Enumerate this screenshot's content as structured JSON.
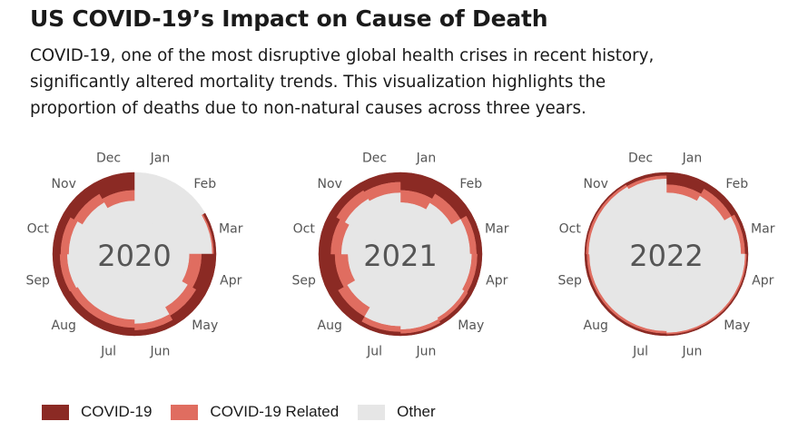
{
  "header": {
    "title": "US COVID-19’s Impact on Cause of Death",
    "subtitle_lines": [
      "COVID-19, one of the most disruptive global health crises in recent history,",
      "significantly altered mortality trends. This visualization highlights the",
      "proportion of deaths due to non-natural causes across three years."
    ]
  },
  "colors": {
    "covid": "#8b2a24",
    "related": "#e06d60",
    "other": "#e6e6e6"
  },
  "legend": [
    {
      "label": "COVID-19",
      "color_key": "covid"
    },
    {
      "label": "COVID-19 Related",
      "color_key": "related"
    },
    {
      "label": "Other",
      "color_key": "other"
    }
  ],
  "chart_data": [
    {
      "type": "radial-stacked-bar",
      "title": "2020",
      "categories": [
        "Jan",
        "Feb",
        "Mar",
        "Apr",
        "May",
        "Jun",
        "Jul",
        "Aug",
        "Sep",
        "Oct",
        "Nov",
        "Dec"
      ],
      "series": [
        {
          "name": "COVID-19",
          "values": [
            0,
            0,
            0.03,
            0.18,
            0.13,
            0.07,
            0.1,
            0.1,
            0.09,
            0.1,
            0.15,
            0.22
          ]
        },
        {
          "name": "COVID-19 Related",
          "values": [
            0,
            0,
            0.02,
            0.15,
            0.12,
            0.08,
            0.1,
            0.1,
            0.09,
            0.1,
            0.12,
            0.13
          ]
        },
        {
          "name": "Other",
          "values": [
            1,
            1,
            0.95,
            0.67,
            0.75,
            0.85,
            0.8,
            0.8,
            0.82,
            0.8,
            0.73,
            0.65
          ]
        }
      ]
    },
    {
      "type": "radial-stacked-bar",
      "title": "2021",
      "categories": [
        "Jan",
        "Feb",
        "Mar",
        "Apr",
        "May",
        "Jun",
        "Jul",
        "Aug",
        "Sep",
        "Oct",
        "Nov",
        "Dec"
      ],
      "series": [
        {
          "name": "COVID-19",
          "values": [
            0.22,
            0.15,
            0.07,
            0.06,
            0.05,
            0.03,
            0.05,
            0.12,
            0.2,
            0.15,
            0.1,
            0.12
          ]
        },
        {
          "name": "COVID-19 Related",
          "values": [
            0.15,
            0.13,
            0.08,
            0.07,
            0.05,
            0.05,
            0.07,
            0.13,
            0.16,
            0.13,
            0.12,
            0.13
          ]
        },
        {
          "name": "Other",
          "values": [
            0.63,
            0.72,
            0.85,
            0.87,
            0.9,
            0.92,
            0.88,
            0.75,
            0.64,
            0.72,
            0.78,
            0.75
          ]
        }
      ]
    },
    {
      "type": "radial-stacked-bar",
      "title": "2022",
      "categories": [
        "Jan",
        "Feb",
        "Mar",
        "Apr",
        "May",
        "Jun",
        "Jul",
        "Aug",
        "Sep",
        "Oct",
        "Nov",
        "Dec"
      ],
      "series": [
        {
          "name": "COVID-19",
          "values": [
            0.15,
            0.08,
            0.04,
            0.02,
            0.02,
            0.02,
            0.03,
            0.03,
            0.03,
            0.02,
            0.02,
            0.04
          ]
        },
        {
          "name": "COVID-19 Related",
          "values": [
            0.1,
            0.1,
            0.05,
            0.02,
            0.02,
            0.02,
            0.03,
            0.03,
            0.03,
            0.03,
            0.03,
            0.04
          ]
        },
        {
          "name": "Other",
          "values": [
            0.75,
            0.82,
            0.91,
            0.96,
            0.96,
            0.96,
            0.94,
            0.94,
            0.94,
            0.95,
            0.95,
            0.92
          ]
        }
      ]
    }
  ]
}
